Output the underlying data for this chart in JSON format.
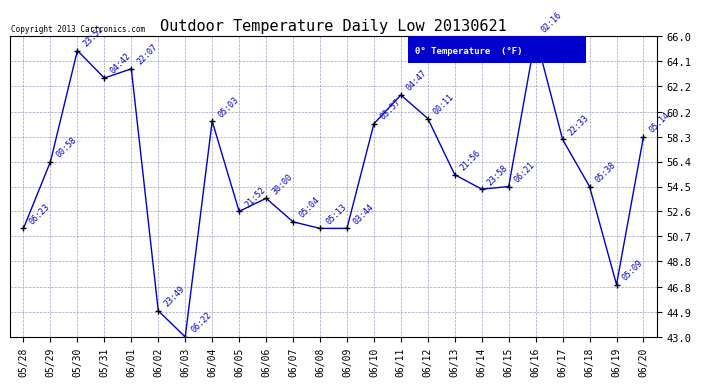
{
  "title": "Outdoor Temperature Daily Low 20130621",
  "copyright": "Copyright 2013 Cartronics.com",
  "legend_label": "0° Temperature  (°F)",
  "background_color": "#ffffff",
  "plot_bg_color": "#ffffff",
  "grid_color": "#8888bb",
  "line_color": "#0000cc",
  "marker_color": "#000000",
  "dates": [
    "05/28",
    "05/29",
    "05/30",
    "05/31",
    "06/01",
    "06/02",
    "06/03",
    "06/04",
    "06/05",
    "06/06",
    "06/07",
    "06/08",
    "06/09",
    "06/10",
    "06/11",
    "06/12",
    "06/13",
    "06/14",
    "06/15",
    "06/16",
    "06/17",
    "06/18",
    "06/19",
    "06/20"
  ],
  "values": [
    51.3,
    56.4,
    64.9,
    62.8,
    63.5,
    45.0,
    43.0,
    59.5,
    52.6,
    53.6,
    51.8,
    51.3,
    51.3,
    59.3,
    61.5,
    59.7,
    55.4,
    54.3,
    54.5,
    66.0,
    58.1,
    54.5,
    47.0,
    58.3
  ],
  "point_labels": [
    "06:23",
    "00:58",
    "23:52",
    "04:42",
    "22:07",
    "23:49",
    "06:22",
    "05:03",
    "21:52",
    "30:00",
    "05:04",
    "05:13",
    "03:44",
    "03:57",
    "04:47",
    "00:11",
    "21:56",
    "23:58",
    "06:21",
    "02:16",
    "22:33",
    "05:38",
    "05:09",
    "05:14"
  ],
  "ylim_min": 43.0,
  "ylim_max": 66.0,
  "yticks": [
    43.0,
    44.9,
    46.8,
    48.8,
    50.7,
    52.6,
    54.5,
    56.4,
    58.3,
    60.2,
    62.2,
    64.1,
    66.0
  ]
}
